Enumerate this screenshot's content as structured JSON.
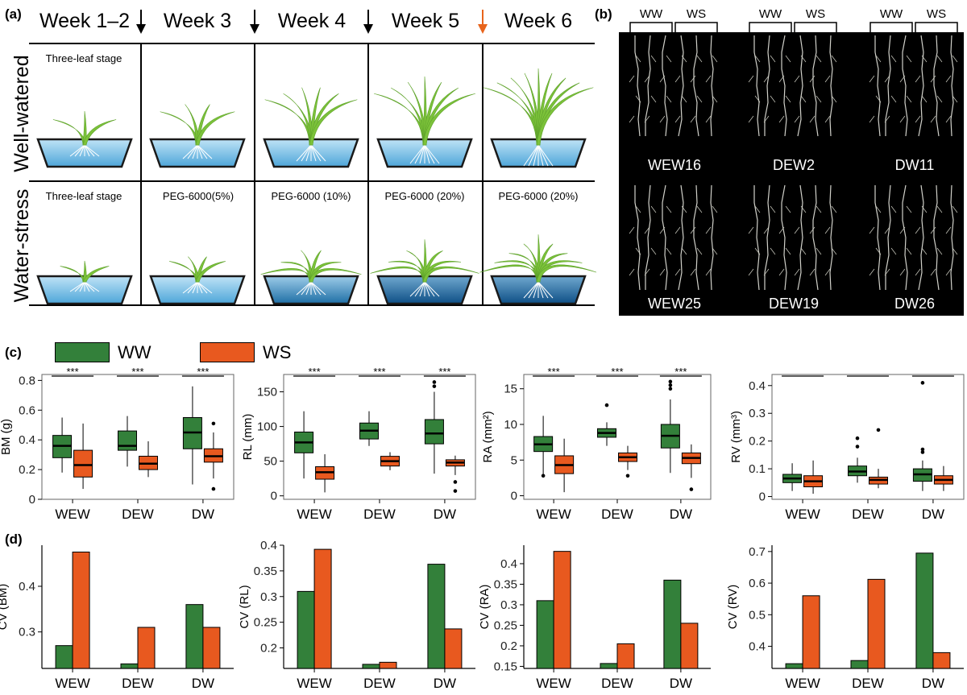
{
  "panels": {
    "a": "(a)",
    "b": "(b)",
    "c": "(c)",
    "d": "(d)"
  },
  "panel_a": {
    "weeks": [
      "Week 1–2",
      "Week 3",
      "Week 4",
      "Week 5",
      "Week 6"
    ],
    "rows": [
      "Well-watered",
      "Water-stress"
    ],
    "ww_labels": [
      "Three-leaf stage",
      "",
      "",
      "",
      ""
    ],
    "ws_labels": [
      "Three-leaf stage",
      "PEG-6000(5%)",
      "PEG-6000 (10%)",
      "PEG-6000 (20%)",
      "PEG-6000 (20%)"
    ],
    "arrow_colors": [
      "#000000",
      "#000000",
      "#000000",
      "#e8641b"
    ]
  },
  "panel_b": {
    "bracket_labels": [
      "WW",
      "WS"
    ],
    "genotypes": [
      "WEW16",
      "DEW2",
      "DW11",
      "WEW25",
      "DEW19",
      "DW26"
    ]
  },
  "legend": {
    "ww": "WW",
    "ws": "WS",
    "ww_color": "#33803a",
    "ws_color": "#e8591f"
  },
  "chart_data": [
    {
      "type": "box",
      "panel": "c",
      "ylabel": "BM (g)",
      "categories": [
        "WEW",
        "DEW",
        "DW"
      ],
      "ylim": [
        0,
        0.84
      ],
      "ticks": [
        0,
        0.2,
        0.4,
        0.6,
        0.8
      ],
      "ww": [
        {
          "lo": 0.18,
          "q1": 0.28,
          "med": 0.36,
          "q3": 0.43,
          "hi": 0.55,
          "out": []
        },
        {
          "lo": 0.22,
          "q1": 0.33,
          "med": 0.36,
          "q3": 0.46,
          "hi": 0.56,
          "out": []
        },
        {
          "lo": 0.1,
          "q1": 0.34,
          "med": 0.45,
          "q3": 0.55,
          "hi": 0.76,
          "out": []
        }
      ],
      "ws": [
        {
          "lo": 0.07,
          "q1": 0.15,
          "med": 0.23,
          "q3": 0.33,
          "hi": 0.51,
          "out": []
        },
        {
          "lo": 0.15,
          "q1": 0.2,
          "med": 0.24,
          "q3": 0.29,
          "hi": 0.39,
          "out": []
        },
        {
          "lo": 0.14,
          "q1": 0.25,
          "med": 0.29,
          "q3": 0.34,
          "hi": 0.45,
          "out": [
            0.07,
            0.51
          ]
        }
      ],
      "sig": [
        "***",
        "***",
        "***"
      ]
    },
    {
      "type": "box",
      "panel": "c",
      "ylabel": "RL (mm)",
      "categories": [
        "WEW",
        "DEW",
        "DW"
      ],
      "ylim": [
        -5,
        175
      ],
      "ticks": [
        0,
        50,
        100,
        150
      ],
      "ww": [
        {
          "lo": 25,
          "q1": 62,
          "med": 77,
          "q3": 92,
          "hi": 122,
          "out": []
        },
        {
          "lo": 72,
          "q1": 82,
          "med": 94,
          "q3": 105,
          "hi": 122,
          "out": []
        },
        {
          "lo": 32,
          "q1": 75,
          "med": 90,
          "q3": 110,
          "hi": 150,
          "out": [
            158,
            164
          ]
        }
      ],
      "ws": [
        {
          "lo": 5,
          "q1": 24,
          "med": 34,
          "q3": 42,
          "hi": 60,
          "out": []
        },
        {
          "lo": 37,
          "q1": 43,
          "med": 50,
          "q3": 57,
          "hi": 63,
          "out": []
        },
        {
          "lo": 30,
          "q1": 43,
          "med": 48,
          "q3": 52,
          "hi": 58,
          "out": [
            20,
            7
          ]
        }
      ],
      "sig": [
        "***",
        "***",
        "***"
      ]
    },
    {
      "type": "box",
      "panel": "c",
      "ylabel": "RA (mm²)",
      "categories": [
        "WEW",
        "DEW",
        "DW"
      ],
      "ylim": [
        -0.5,
        17
      ],
      "ticks": [
        0,
        5,
        10,
        15
      ],
      "ww": [
        {
          "lo": 3,
          "q1": 6.2,
          "med": 7.2,
          "q3": 8.3,
          "hi": 11.2,
          "out": [
            2.8
          ]
        },
        {
          "lo": 7,
          "q1": 8.2,
          "med": 8.8,
          "q3": 9.4,
          "hi": 10.3,
          "out": [
            12.7
          ]
        },
        {
          "lo": 3.2,
          "q1": 6.7,
          "med": 8.4,
          "q3": 10,
          "hi": 13.5,
          "out": [
            15,
            15.5,
            16
          ]
        }
      ],
      "ws": [
        {
          "lo": 0.5,
          "q1": 3.1,
          "med": 4.3,
          "q3": 5.6,
          "hi": 8,
          "out": []
        },
        {
          "lo": 3.6,
          "q1": 4.8,
          "med": 5.4,
          "q3": 6,
          "hi": 7,
          "out": [
            2.8
          ]
        },
        {
          "lo": 2.5,
          "q1": 4.5,
          "med": 5.3,
          "q3": 6,
          "hi": 7.2,
          "out": [
            0.9
          ]
        }
      ],
      "sig": [
        "***",
        "***",
        "***"
      ]
    },
    {
      "type": "box",
      "panel": "c",
      "ylabel": "RV (mm³)",
      "categories": [
        "WEW",
        "DEW",
        "DW"
      ],
      "ylim": [
        -0.01,
        0.44
      ],
      "ticks": [
        0,
        0.1,
        0.2,
        0.3,
        0.4
      ],
      "ww": [
        {
          "lo": 0.02,
          "q1": 0.05,
          "med": 0.065,
          "q3": 0.08,
          "hi": 0.12,
          "out": []
        },
        {
          "lo": 0.05,
          "q1": 0.075,
          "med": 0.09,
          "q3": 0.11,
          "hi": 0.14,
          "out": [
            0.18,
            0.21
          ]
        },
        {
          "lo": 0.02,
          "q1": 0.055,
          "med": 0.08,
          "q3": 0.1,
          "hi": 0.13,
          "out": [
            0.16,
            0.17,
            0.41
          ]
        }
      ],
      "ws": [
        {
          "lo": 0.01,
          "q1": 0.035,
          "med": 0.055,
          "q3": 0.075,
          "hi": 0.13,
          "out": []
        },
        {
          "lo": 0.03,
          "q1": 0.045,
          "med": 0.06,
          "q3": 0.07,
          "hi": 0.1,
          "out": [
            0.24
          ]
        },
        {
          "lo": 0.02,
          "q1": 0.045,
          "med": 0.06,
          "q3": 0.075,
          "hi": 0.11,
          "out": []
        }
      ],
      "sig": [
        "",
        "",
        ""
      ]
    },
    {
      "type": "bar",
      "panel": "d",
      "ylabel": "CV (BM)",
      "categories": [
        "WEW",
        "DEW",
        "DW"
      ],
      "ylim": [
        0.22,
        0.49
      ],
      "ticks": [
        0.3,
        0.4
      ],
      "series": [
        {
          "name": "WW",
          "values": [
            0.27,
            0.23,
            0.36
          ]
        },
        {
          "name": "WS",
          "values": [
            0.475,
            0.31,
            0.31
          ]
        }
      ]
    },
    {
      "type": "bar",
      "panel": "d",
      "ylabel": "CV (RL)",
      "categories": [
        "WEW",
        "DEW",
        "DW"
      ],
      "ylim": [
        0.16,
        0.4
      ],
      "ticks": [
        0.2,
        0.25,
        0.3,
        0.35,
        0.4
      ],
      "series": [
        {
          "name": "WW",
          "values": [
            0.31,
            0.168,
            0.363
          ]
        },
        {
          "name": "WS",
          "values": [
            0.392,
            0.172,
            0.237
          ]
        }
      ]
    },
    {
      "type": "bar",
      "panel": "d",
      "ylabel": "CV (RA)",
      "categories": [
        "WEW",
        "DEW",
        "DW"
      ],
      "ylim": [
        0.145,
        0.445
      ],
      "ticks": [
        0.15,
        0.2,
        0.25,
        0.3,
        0.35,
        0.4
      ],
      "series": [
        {
          "name": "WW",
          "values": [
            0.31,
            0.157,
            0.36
          ]
        },
        {
          "name": "WS",
          "values": [
            0.43,
            0.205,
            0.255
          ]
        }
      ]
    },
    {
      "type": "bar",
      "panel": "d",
      "ylabel": "CV (RV)",
      "categories": [
        "WEW",
        "DEW",
        "DW"
      ],
      "ylim": [
        0.33,
        0.72
      ],
      "ticks": [
        0.4,
        0.5,
        0.6,
        0.7
      ],
      "series": [
        {
          "name": "WW",
          "values": [
            0.345,
            0.355,
            0.695
          ]
        },
        {
          "name": "WS",
          "values": [
            0.56,
            0.612,
            0.38
          ]
        }
      ]
    }
  ]
}
